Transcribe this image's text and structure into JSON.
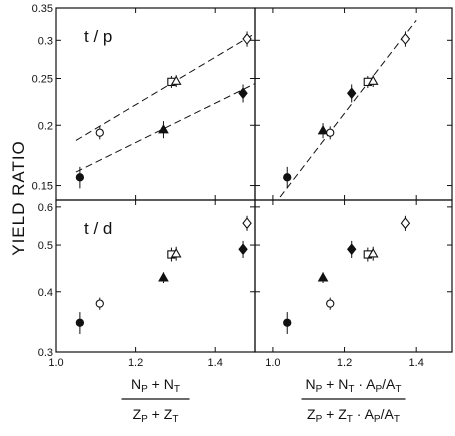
{
  "figure": {
    "ylabel": "YIELD RATIO"
  },
  "chart_data": [
    {
      "type": "scatter",
      "panel": "top-left",
      "label": "t / p",
      "xlim": [
        1.0,
        1.5
      ],
      "ylim": [
        0.14,
        0.35
      ],
      "y_scale": "log",
      "x_ticks": [
        1.0,
        1.2,
        1.4
      ],
      "y_ticks": [
        0.15,
        0.2,
        0.25,
        0.3,
        0.35
      ],
      "y_tick_labels": [
        "0.15",
        "0.2",
        "0.25",
        "0.3",
        "0.35"
      ],
      "fit_lines": [
        {
          "x": [
            1.05,
            1.5
          ],
          "y": [
            0.186,
            0.31
          ],
          "style": "dashed"
        },
        {
          "x": [
            1.05,
            1.5
          ],
          "y": [
            0.16,
            0.244
          ],
          "style": "dashed"
        }
      ],
      "points": [
        {
          "x": 1.06,
          "y": 0.156,
          "err": 0.008,
          "marker": "circle",
          "filled": true
        },
        {
          "x": 1.11,
          "y": 0.193,
          "err": 0.006,
          "marker": "circle",
          "filled": false
        },
        {
          "x": 1.27,
          "y": 0.196,
          "err": 0.008,
          "marker": "triangle",
          "filled": true
        },
        {
          "x": 1.29,
          "y": 0.246,
          "err": 0.007,
          "marker": "square",
          "filled": false
        },
        {
          "x": 1.302,
          "y": 0.247,
          "err": 0.007,
          "marker": "triangle",
          "filled": false
        },
        {
          "x": 1.47,
          "y": 0.233,
          "err": 0.01,
          "marker": "diamond",
          "filled": true
        },
        {
          "x": 1.48,
          "y": 0.302,
          "err": 0.011,
          "marker": "diamond",
          "filled": false
        }
      ]
    },
    {
      "type": "scatter",
      "panel": "top-right",
      "label": "",
      "xlim": [
        0.95,
        1.5
      ],
      "ylim": [
        0.14,
        0.35
      ],
      "y_scale": "log",
      "x_ticks": [
        1.0,
        1.2,
        1.4
      ],
      "fit_lines": [
        {
          "x": [
            1.02,
            1.4
          ],
          "y": [
            0.142,
            0.33
          ],
          "style": "dashed"
        }
      ],
      "points": [
        {
          "x": 1.04,
          "y": 0.156,
          "err": 0.008,
          "marker": "circle",
          "filled": true
        },
        {
          "x": 1.14,
          "y": 0.195,
          "err": 0.007,
          "marker": "triangle",
          "filled": true
        },
        {
          "x": 1.16,
          "y": 0.193,
          "err": 0.006,
          "marker": "circle",
          "filled": false
        },
        {
          "x": 1.22,
          "y": 0.233,
          "err": 0.01,
          "marker": "diamond",
          "filled": true
        },
        {
          "x": 1.265,
          "y": 0.246,
          "err": 0.007,
          "marker": "square",
          "filled": false
        },
        {
          "x": 1.28,
          "y": 0.247,
          "err": 0.007,
          "marker": "triangle",
          "filled": false
        },
        {
          "x": 1.37,
          "y": 0.302,
          "err": 0.011,
          "marker": "diamond",
          "filled": false
        }
      ]
    },
    {
      "type": "scatter",
      "panel": "bottom-left",
      "label": "t / d",
      "xlim": [
        1.0,
        1.5
      ],
      "ylim": [
        0.3,
        0.62
      ],
      "y_scale": "log",
      "x_ticks": [
        1.0,
        1.2,
        1.4
      ],
      "x_tick_labels": [
        "1.0",
        "1.2",
        "1.4"
      ],
      "y_ticks": [
        0.3,
        0.4,
        0.5,
        0.6
      ],
      "y_tick_labels": [
        "0.3",
        "0.4",
        "0.5",
        "0.6"
      ],
      "xlabel": {
        "numerator": [
          "N",
          "P",
          " + N",
          "T"
        ],
        "denominator": [
          "Z",
          "P",
          " + Z",
          "T"
        ]
      },
      "points": [
        {
          "x": 1.06,
          "y": 0.345,
          "err": 0.018,
          "marker": "circle",
          "filled": true
        },
        {
          "x": 1.11,
          "y": 0.378,
          "err": 0.011,
          "marker": "circle",
          "filled": false
        },
        {
          "x": 1.27,
          "y": 0.428,
          "err": 0.011,
          "marker": "triangle",
          "filled": true
        },
        {
          "x": 1.29,
          "y": 0.478,
          "err": 0.016,
          "marker": "square",
          "filled": false
        },
        {
          "x": 1.302,
          "y": 0.48,
          "err": 0.016,
          "marker": "triangle",
          "filled": false
        },
        {
          "x": 1.47,
          "y": 0.49,
          "err": 0.02,
          "marker": "diamond",
          "filled": true
        },
        {
          "x": 1.48,
          "y": 0.555,
          "err": 0.02,
          "marker": "diamond",
          "filled": false
        }
      ]
    },
    {
      "type": "scatter",
      "panel": "bottom-right",
      "label": "",
      "xlim": [
        0.95,
        1.5
      ],
      "ylim": [
        0.3,
        0.62
      ],
      "y_scale": "log",
      "x_ticks": [
        1.0,
        1.2,
        1.4
      ],
      "x_tick_labels": [
        "1.0",
        "1.2",
        "1.4"
      ],
      "xlabel": {
        "numerator": [
          "N",
          "P",
          " + N",
          "T",
          " · A",
          "P",
          "/A",
          "T"
        ],
        "denominator": [
          "Z",
          "P",
          " + Z",
          "T",
          " · A",
          "P",
          "/A",
          "T"
        ]
      },
      "points": [
        {
          "x": 1.04,
          "y": 0.345,
          "err": 0.018,
          "marker": "circle",
          "filled": true
        },
        {
          "x": 1.14,
          "y": 0.428,
          "err": 0.011,
          "marker": "triangle",
          "filled": true
        },
        {
          "x": 1.16,
          "y": 0.378,
          "err": 0.011,
          "marker": "circle",
          "filled": false
        },
        {
          "x": 1.22,
          "y": 0.49,
          "err": 0.02,
          "marker": "diamond",
          "filled": true
        },
        {
          "x": 1.265,
          "y": 0.478,
          "err": 0.016,
          "marker": "square",
          "filled": false
        },
        {
          "x": 1.28,
          "y": 0.48,
          "err": 0.016,
          "marker": "triangle",
          "filled": false
        },
        {
          "x": 1.37,
          "y": 0.555,
          "err": 0.02,
          "marker": "diamond",
          "filled": false
        }
      ]
    }
  ]
}
